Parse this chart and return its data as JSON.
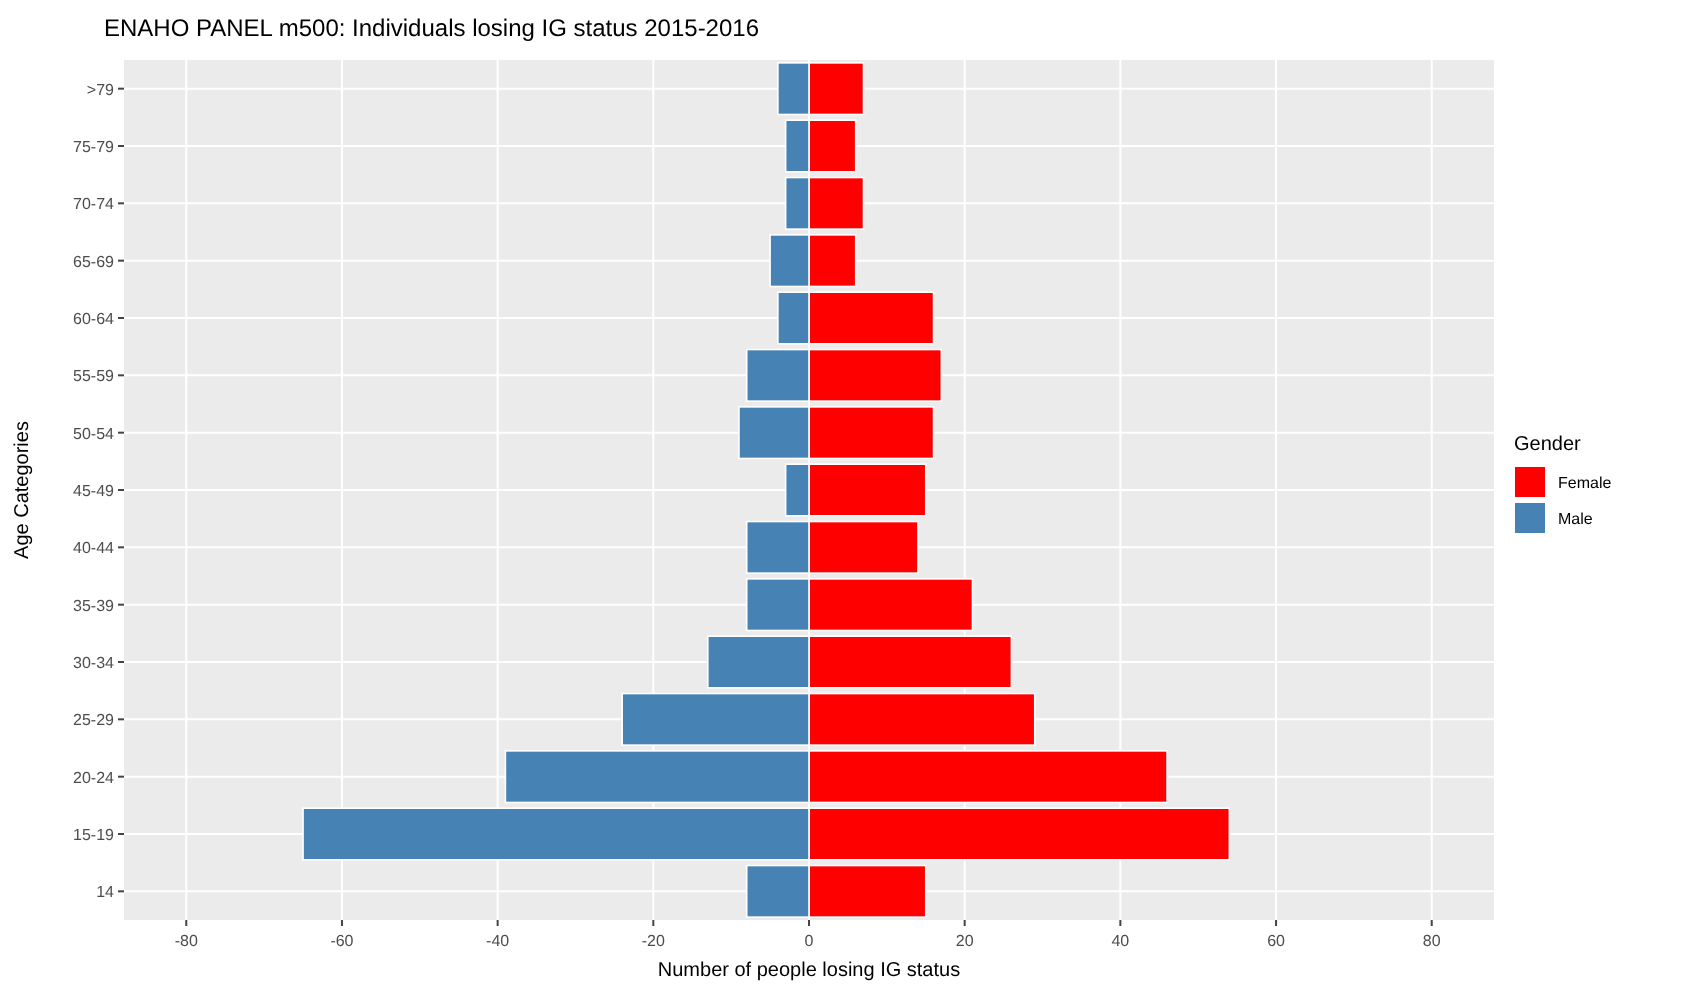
{
  "chart_data": {
    "type": "bar",
    "orientation": "horizontal",
    "title": "ENAHO PANEL m500: Individuals losing IG status 2015-2016",
    "xlabel": "Number of people losing IG status",
    "ylabel": "Age Categories",
    "legend_title": "Gender",
    "legend": "right",
    "grid": true,
    "stacked": true,
    "categories": [
      ">79",
      "75-79",
      "70-74",
      "65-69",
      "60-64",
      "55-59",
      "50-54",
      "45-49",
      "40-44",
      "35-39",
      "30-34",
      "25-29",
      "20-24",
      "15-19",
      "14"
    ],
    "series": [
      {
        "name": "Female",
        "color": "#ff0000",
        "values": [
          7,
          6,
          7,
          6,
          16,
          17,
          16,
          15,
          14,
          21,
          26,
          29,
          46,
          54,
          15
        ]
      },
      {
        "name": "Male",
        "color": "#4682b4",
        "values": [
          -4,
          -3,
          -3,
          -5,
          -4,
          -8,
          -9,
          -3,
          -8,
          -8,
          -13,
          -24,
          -39,
          -65,
          -8
        ]
      }
    ],
    "xlim": [
      -88,
      88
    ],
    "xticks": [
      {
        "value": -80,
        "label": "-80"
      },
      {
        "value": -60,
        "label": "-60"
      },
      {
        "value": -40,
        "label": "-40"
      },
      {
        "value": -20,
        "label": "-20"
      },
      0,
      20,
      40,
      60,
      80
    ]
  }
}
